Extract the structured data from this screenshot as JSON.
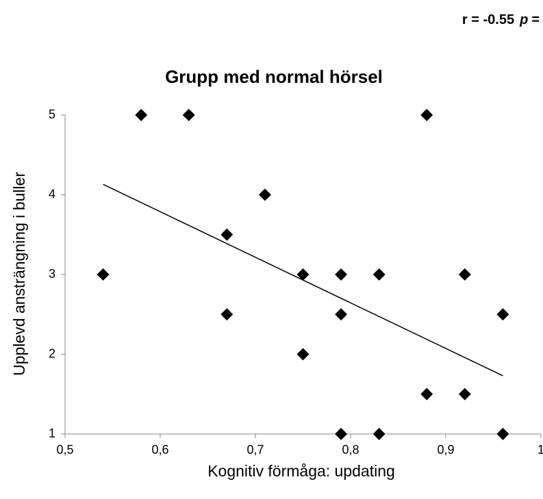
{
  "chart_data": {
    "type": "scatter",
    "title": "Grupp med normal hörsel",
    "annotation": [
      "r = -0.55",
      "p",
      "="
    ],
    "xlabel": "Kognitiv förmåga: updating",
    "ylabel": "Upplevd ansträngning i buller",
    "x": [
      0.54,
      0.58,
      0.63,
      0.67,
      0.67,
      0.71,
      0.75,
      0.75,
      0.79,
      0.79,
      0.79,
      0.83,
      0.83,
      0.88,
      0.88,
      0.92,
      0.92,
      0.96,
      0.96
    ],
    "values": [
      3,
      5,
      5,
      3.5,
      2.5,
      4,
      3,
      2,
      3,
      2.5,
      1,
      3,
      1,
      5,
      1.5,
      3,
      1.5,
      2.5,
      1
    ],
    "color": "#000000",
    "trendline": {
      "x": [
        0.54,
        0.96
      ],
      "y": [
        4.13,
        1.73
      ]
    },
    "xlim": [
      0.5,
      1
    ],
    "xticks": [
      {
        "value": 0.5,
        "label": "0,5"
      },
      {
        "value": 0.6,
        "label": "0,6"
      },
      {
        "value": 0.7,
        "label": "0,7"
      },
      {
        "value": 0.8,
        "label": "0,8"
      },
      {
        "value": 0.9,
        "label": "0,9"
      },
      1
    ],
    "ylim": [
      1,
      5
    ],
    "yticks": [
      1,
      2,
      3,
      4,
      5
    ],
    "grid": false
  }
}
